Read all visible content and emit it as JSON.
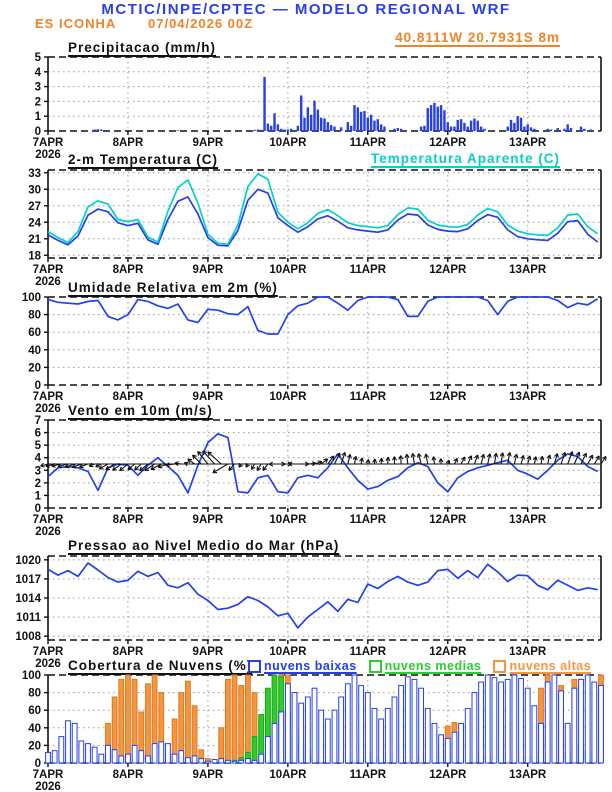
{
  "header": {
    "line1": "MCTIC/INPE/CPTEC — MODELO REGIONAL WRF",
    "station": "ES ICONHA",
    "run": "07/04/2026 00Z",
    "title_color": "#2c3fe8",
    "accent_color": "#f08228"
  },
  "axis": {
    "hours_total": 166,
    "line_step_hours": 3,
    "bar_step_hours": 2,
    "xticks": [
      {
        "t": 0,
        "label": "7APR",
        "sub": "2026"
      },
      {
        "t": 24,
        "label": "8APR"
      },
      {
        "t": 48,
        "label": "9APR"
      },
      {
        "t": 72,
        "label": "10APR"
      },
      {
        "t": 96,
        "label": "11APR"
      },
      {
        "t": 120,
        "label": "12APR"
      },
      {
        "t": 144,
        "label": "13APR"
      }
    ]
  },
  "chart_data": [
    {
      "id": "precipitation",
      "type": "bar",
      "title": "Precipitacao (mm/h)",
      "right_label": "40.8111W 20.7931S 8m",
      "right_label_color": "#f08228",
      "ylim": [
        0,
        5
      ],
      "yticks": [
        0,
        1,
        2,
        3,
        4,
        5
      ],
      "bar_color": "#2440ee",
      "bars": [
        [
          14,
          0.1
        ],
        [
          15,
          0.12
        ],
        [
          16,
          0.1
        ],
        [
          17,
          0.06
        ],
        [
          38,
          0.06
        ],
        [
          39,
          0.05
        ],
        [
          62,
          0.08
        ],
        [
          63,
          0.1
        ],
        [
          64,
          0.08
        ],
        [
          65,
          3.65
        ],
        [
          66,
          0.5
        ],
        [
          67,
          0.35
        ],
        [
          68,
          1.2
        ],
        [
          69,
          0.45
        ],
        [
          70,
          0.15
        ],
        [
          71,
          0.1
        ],
        [
          72,
          0.1
        ],
        [
          73,
          0.15
        ],
        [
          75,
          0.35
        ],
        [
          76,
          2.4
        ],
        [
          77,
          0.9
        ],
        [
          78,
          1.6
        ],
        [
          79,
          1.1
        ],
        [
          80,
          2.05
        ],
        [
          81,
          1.45
        ],
        [
          82,
          0.9
        ],
        [
          83,
          0.85
        ],
        [
          84,
          0.6
        ],
        [
          85,
          0.4
        ],
        [
          86,
          0.3
        ],
        [
          88,
          0.25
        ],
        [
          90,
          0.6
        ],
        [
          91,
          0.35
        ],
        [
          92,
          1.75
        ],
        [
          93,
          1.6
        ],
        [
          94,
          1.3
        ],
        [
          95,
          1.35
        ],
        [
          96,
          0.9
        ],
        [
          97,
          1.1
        ],
        [
          98,
          0.7
        ],
        [
          99,
          0.8
        ],
        [
          100,
          0.45
        ],
        [
          101,
          0.3
        ],
        [
          104,
          0.15
        ],
        [
          105,
          0.2
        ],
        [
          106,
          0.15
        ],
        [
          112,
          0.3
        ],
        [
          113,
          0.35
        ],
        [
          114,
          1.55
        ],
        [
          115,
          1.75
        ],
        [
          116,
          1.9
        ],
        [
          117,
          1.65
        ],
        [
          118,
          1.75
        ],
        [
          119,
          1.4
        ],
        [
          120,
          0.6
        ],
        [
          121,
          0.3
        ],
        [
          122,
          0.3
        ],
        [
          123,
          0.75
        ],
        [
          124,
          0.8
        ],
        [
          125,
          0.55
        ],
        [
          126,
          0.3
        ],
        [
          127,
          0.7
        ],
        [
          128,
          0.85
        ],
        [
          129,
          0.7
        ],
        [
          130,
          0.3
        ],
        [
          131,
          0.15
        ],
        [
          138,
          0.3
        ],
        [
          139,
          0.75
        ],
        [
          140,
          0.55
        ],
        [
          141,
          1.0
        ],
        [
          142,
          0.9
        ],
        [
          143,
          0.3
        ],
        [
          144,
          0.45
        ],
        [
          145,
          0.25
        ],
        [
          146,
          0.15
        ],
        [
          150,
          0.15
        ],
        [
          151,
          0.1
        ],
        [
          153,
          0.2
        ],
        [
          155,
          0.15
        ],
        [
          156,
          0.45
        ],
        [
          157,
          0.2
        ],
        [
          160,
          0.3
        ],
        [
          161,
          0.15
        ],
        [
          163,
          0.1
        ]
      ]
    },
    {
      "id": "temperature",
      "type": "line",
      "title": "2-m Temperatura (C)",
      "right_label": "Temperatura Aparente (C)",
      "right_label_color": "#00d2c8",
      "ylim": [
        18,
        33
      ],
      "yticks": [
        18,
        21,
        24,
        27,
        30,
        33
      ],
      "series": [
        {
          "name": "2-m Temperatura (C)",
          "color": "#2440ee",
          "values": [
            21.7,
            20.7,
            19.9,
            21.5,
            25.3,
            26.4,
            25.9,
            23.9,
            23.4,
            23.8,
            20.8,
            20.0,
            24.5,
            27.8,
            28.6,
            25.5,
            21.2,
            19.8,
            19.7,
            22.5,
            28.0,
            30.0,
            29.3,
            24.8,
            23.4,
            22.2,
            23.2,
            24.6,
            25.2,
            24.2,
            23.0,
            22.6,
            22.4,
            22.2,
            22.6,
            24.4,
            25.5,
            25.3,
            23.5,
            22.7,
            22.4,
            22.3,
            22.8,
            24.3,
            25.4,
            24.9,
            22.6,
            21.4,
            21.0,
            20.8,
            20.7,
            22.0,
            24.1,
            24.3,
            21.8,
            20.4
          ]
        },
        {
          "name": "Temperatura Aparente (C)",
          "color": "#00d2c8",
          "values": [
            22.3,
            21.2,
            20.3,
            22.3,
            26.8,
            27.9,
            27.3,
            24.5,
            24.1,
            24.5,
            21.3,
            20.4,
            26.0,
            30.3,
            31.7,
            27.5,
            21.8,
            20.2,
            20.0,
            23.5,
            30.5,
            32.8,
            31.8,
            25.8,
            24.0,
            22.8,
            23.9,
            25.6,
            26.3,
            25.2,
            23.9,
            23.4,
            23.2,
            23.0,
            23.4,
            25.4,
            26.6,
            26.4,
            24.4,
            23.5,
            23.2,
            23.1,
            23.6,
            25.3,
            26.5,
            25.9,
            23.5,
            22.4,
            21.9,
            21.7,
            21.6,
            23.0,
            25.3,
            25.5,
            23.2,
            21.9
          ]
        }
      ]
    },
    {
      "id": "humidity",
      "type": "line",
      "title": "Umidade Relativa em 2m (%)",
      "ylim": [
        0,
        100
      ],
      "yticks": [
        0,
        20,
        40,
        60,
        80,
        100
      ],
      "series": [
        {
          "name": "Umidade Relativa em 2m (%)",
          "color": "#2440ee",
          "values": [
            97,
            94,
            93,
            92,
            95,
            96,
            78,
            74,
            80,
            97,
            95,
            90,
            87,
            92,
            74,
            71,
            86,
            85,
            81,
            80,
            89,
            62,
            58,
            58,
            80,
            90,
            93,
            100,
            100,
            93,
            85,
            96,
            100,
            100,
            100,
            97,
            78,
            78,
            95,
            100,
            100,
            100,
            100,
            100,
            96,
            80,
            95,
            100,
            100,
            100,
            100,
            96,
            88,
            93,
            91,
            98
          ]
        }
      ]
    },
    {
      "id": "wind",
      "type": "wind",
      "title": "Vento em 10m (m/s)",
      "ylim": [
        0,
        7
      ],
      "yticks": [
        0,
        1,
        2,
        3,
        4,
        5,
        6,
        7
      ],
      "speed_color": "#2440ee",
      "arrow_color": "#111111",
      "arrow_baseline": 3.5,
      "speed": [
        2.5,
        3.2,
        3.3,
        3.2,
        2.9,
        1.4,
        3.2,
        3.5,
        3.4,
        2.6,
        3.4,
        4.0,
        3.3,
        2.6,
        1.2,
        3.4,
        5.2,
        5.9,
        5.6,
        1.3,
        1.2,
        2.4,
        2.6,
        1.3,
        1.2,
        2.4,
        2.6,
        2.4,
        3.2,
        4.3,
        3.2,
        2.2,
        1.5,
        1.7,
        2.2,
        2.5,
        3.2,
        3.6,
        3.3,
        2.0,
        1.3,
        2.4,
        2.9,
        3.2,
        3.4,
        3.6,
        3.8,
        3.0,
        2.7,
        2.3,
        3.0,
        3.8,
        4.3,
        4.1,
        3.3,
        2.9
      ],
      "arrow_angles_deg_cw_from_north": [
        255,
        256,
        258,
        256,
        252,
        250,
        250,
        248,
        244,
        240,
        237,
        234,
        231,
        229,
        228,
        231,
        236,
        242,
        252,
        262,
        278,
        292,
        306,
        316,
        321,
        318,
        312,
        240,
        222,
        215,
        210,
        208,
        212,
        218,
        268,
        92,
        88,
        272,
        90,
        85,
        72,
        52,
        36,
        26,
        18,
        14,
        11,
        9,
        7,
        5,
        4,
        2,
        0,
        357,
        354,
        350,
        346,
        349,
        353,
        357,
        22,
        26,
        28,
        24,
        20,
        15,
        12,
        10,
        8,
        10,
        13,
        16,
        15,
        12,
        10,
        13,
        16,
        19,
        21,
        23,
        26,
        29,
        31,
        33
      ]
    },
    {
      "id": "pressure",
      "type": "line",
      "title": "Pressao ao Nivel Medio do Mar (hPa)",
      "ylim": [
        1008,
        1020
      ],
      "yticks": [
        1008,
        1011,
        1014,
        1017,
        1020
      ],
      "series": [
        {
          "name": "Pressao ao Nivel Medio do Mar (hPa)",
          "color": "#2440ee",
          "values": [
            1018.5,
            1017.6,
            1018.3,
            1017.4,
            1019.5,
            1018.4,
            1017.2,
            1016.5,
            1016.8,
            1018.2,
            1017.4,
            1018.0,
            1016.0,
            1015.6,
            1016.4,
            1014.6,
            1013.6,
            1012.2,
            1012.4,
            1013.0,
            1014.2,
            1013.6,
            1012.6,
            1011.2,
            1011.6,
            1009.3,
            1011.0,
            1012.2,
            1013.4,
            1011.9,
            1013.8,
            1013.3,
            1016.2,
            1015.5,
            1016.6,
            1017.4,
            1016.5,
            1016.0,
            1016.5,
            1018.3,
            1018.5,
            1017.1,
            1018.3,
            1017.2,
            1019.3,
            1018.1,
            1016.6,
            1017.6,
            1017.5,
            1016.0,
            1015.3,
            1016.8,
            1016.0,
            1015.2,
            1015.6,
            1015.3
          ]
        }
      ]
    },
    {
      "id": "clouds",
      "type": "cloud-bars",
      "title": "Cobertura de Nuvens (%)",
      "ylim": [
        0,
        100
      ],
      "yticks": [
        0,
        20,
        40,
        60,
        80,
        100
      ],
      "series": [
        {
          "name": "nuvens baixas",
          "stroke": "#2440ee",
          "fill": "#ffffff",
          "values": [
            12,
            14,
            30,
            48,
            45,
            25,
            22,
            18,
            10,
            20,
            15,
            8,
            10,
            20,
            14,
            8,
            22,
            24,
            22,
            10,
            14,
            6,
            8,
            5,
            2,
            4,
            5,
            3,
            2,
            3,
            5,
            3,
            10,
            30,
            45,
            58,
            90,
            80,
            68,
            75,
            85,
            60,
            50,
            60,
            75,
            90,
            100,
            88,
            80,
            62,
            50,
            62,
            75,
            88,
            98,
            95,
            85,
            62,
            45,
            32,
            28,
            35,
            45,
            62,
            80,
            92,
            100,
            97,
            92,
            95,
            100,
            96,
            85,
            65,
            45,
            92,
            100,
            82,
            45,
            85,
            95,
            100,
            92,
            88
          ]
        },
        {
          "name": "nuvens medias",
          "stroke": "#18a818",
          "fill": "#2ecc2e",
          "values": [
            0,
            0,
            0,
            0,
            0,
            0,
            0,
            0,
            0,
            0,
            0,
            0,
            0,
            0,
            0,
            0,
            0,
            0,
            0,
            0,
            0,
            0,
            0,
            0,
            0,
            0,
            0,
            0,
            3,
            6,
            12,
            30,
            55,
            85,
            100,
            98,
            60,
            35,
            25,
            15,
            8,
            0,
            0,
            0,
            0,
            0,
            0,
            0,
            12,
            8,
            0,
            0,
            0,
            0,
            0,
            0,
            6,
            0,
            0,
            18,
            15,
            8,
            0,
            0,
            0,
            12,
            8,
            0,
            0,
            0,
            0,
            0,
            6,
            10,
            0,
            0,
            0,
            0,
            12,
            18,
            22,
            15,
            8,
            0
          ]
        },
        {
          "name": "nuvens altas",
          "stroke": "#e0791c",
          "fill": "#f6953f",
          "values": [
            0,
            0,
            0,
            0,
            0,
            0,
            0,
            0,
            0,
            45,
            75,
            95,
            100,
            95,
            58,
            90,
            100,
            80,
            10,
            50,
            80,
            93,
            65,
            15,
            5,
            3,
            40,
            95,
            100,
            88,
            100,
            80,
            50,
            70,
            95,
            100,
            100,
            80,
            40,
            10,
            0,
            0,
            0,
            0,
            0,
            0,
            0,
            0,
            0,
            0,
            0,
            0,
            0,
            0,
            0,
            0,
            0,
            0,
            0,
            0,
            42,
            46,
            0,
            0,
            32,
            0,
            0,
            0,
            0,
            45,
            0,
            0,
            0,
            0,
            85,
            100,
            0,
            88,
            0,
            95,
            0,
            0,
            80,
            100
          ]
        }
      ]
    }
  ]
}
